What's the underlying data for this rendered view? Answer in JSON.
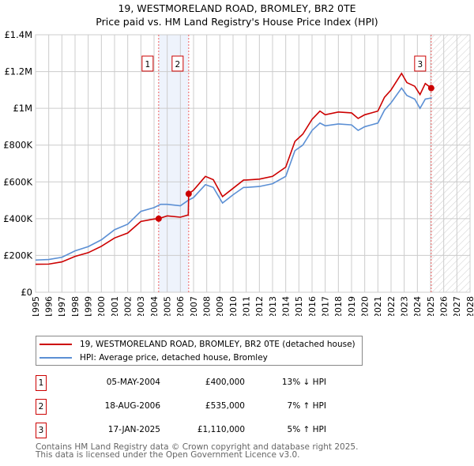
{
  "chart_data": {
    "type": "line",
    "title": "19, WESTMORELAND ROAD, BROMLEY, BR2 0TE",
    "subtitle": "Price paid vs. HM Land Registry's House Price Index (HPI)",
    "xlim": [
      1995,
      2028
    ],
    "ylim": [
      0,
      1400000
    ],
    "x_ticks": [
      "1995",
      "1996",
      "1997",
      "1998",
      "1999",
      "2000",
      "2001",
      "2002",
      "2003",
      "2004",
      "2005",
      "2006",
      "2007",
      "2008",
      "2009",
      "2010",
      "2011",
      "2012",
      "2013",
      "2014",
      "2015",
      "2016",
      "2017",
      "2018",
      "2019",
      "2020",
      "2021",
      "2022",
      "2023",
      "2024",
      "2025",
      "2026",
      "2027",
      "2028"
    ],
    "y_ticks": [
      {
        "v": 0,
        "label": "£0"
      },
      {
        "v": 200000,
        "label": "£200K"
      },
      {
        "v": 400000,
        "label": "£400K"
      },
      {
        "v": 600000,
        "label": "£600K"
      },
      {
        "v": 800000,
        "label": "£800K"
      },
      {
        "v": 1000000,
        "label": "£1M"
      },
      {
        "v": 1200000,
        "label": "£1.2M"
      },
      {
        "v": 1400000,
        "label": "£1.4M"
      }
    ],
    "grid": true,
    "series": [
      {
        "name": "19, WESTMORELAND ROAD, BROMLEY, BR2 0TE (detached house)",
        "color": "#cc0000",
        "x": [
          1995,
          1996,
          1997,
          1998,
          1999,
          2000,
          2001,
          2002,
          2003,
          2004,
          2004.35,
          2005,
          2006,
          2006.6,
          2006.63,
          2007,
          2007.9,
          2008.5,
          2009.2,
          2010,
          2010.8,
          2011,
          2012,
          2013,
          2014,
          2014.7,
          2015.3,
          2016,
          2016.6,
          2017,
          2018,
          2019,
          2019.5,
          2020,
          2020.5,
          2021,
          2021.5,
          2022,
          2022.8,
          2023.2,
          2023.8,
          2024.2,
          2024.6,
          2025.05
        ],
        "y": [
          152000,
          153000,
          165000,
          195000,
          215000,
          250000,
          295000,
          322000,
          385000,
          398000,
          400000,
          415000,
          408000,
          420000,
          535000,
          555000,
          630000,
          612000,
          520000,
          565000,
          610000,
          610000,
          615000,
          630000,
          680000,
          820000,
          860000,
          940000,
          985000,
          965000,
          980000,
          975000,
          945000,
          965000,
          975000,
          985000,
          1060000,
          1100000,
          1190000,
          1140000,
          1120000,
          1075000,
          1135000,
          1110000
        ]
      },
      {
        "name": "HPI: Average price, detached house, Bromley",
        "color": "#5b8fd4",
        "x": [
          1995,
          1996,
          1997,
          1998,
          1999,
          2000,
          2001,
          2002,
          2003,
          2004,
          2004.5,
          2005,
          2006,
          2006.6,
          2007,
          2007.9,
          2008.5,
          2009.2,
          2010,
          2010.8,
          2011,
          2012,
          2013,
          2014,
          2014.7,
          2015.3,
          2016,
          2016.6,
          2017,
          2018,
          2019,
          2019.5,
          2020,
          2020.5,
          2021,
          2021.5,
          2022,
          2022.8,
          2023.2,
          2023.8,
          2024.2,
          2024.6,
          2025.1
        ],
        "y": [
          175000,
          178000,
          190000,
          225000,
          248000,
          285000,
          340000,
          370000,
          440000,
          460000,
          478000,
          478000,
          470000,
          500000,
          515000,
          585000,
          570000,
          485000,
          530000,
          570000,
          570000,
          575000,
          590000,
          630000,
          770000,
          800000,
          880000,
          920000,
          905000,
          915000,
          910000,
          880000,
          900000,
          910000,
          920000,
          990000,
          1030000,
          1110000,
          1070000,
          1050000,
          1000000,
          1050000,
          1057000
        ]
      }
    ],
    "sales": [
      {
        "id": "1",
        "x": 2004.35,
        "y": 400000,
        "date": "05-MAY-2004",
        "price": "£400,000",
        "hpi": "13% ↓ HPI"
      },
      {
        "id": "2",
        "x": 2006.63,
        "y": 535000,
        "date": "18-AUG-2006",
        "price": "£535,000",
        "hpi": "7% ↑ HPI"
      },
      {
        "id": "3",
        "x": 2025.05,
        "y": 1110000,
        "date": "17-JAN-2025",
        "price": "£1,110,000",
        "hpi": "5% ↑ HPI"
      }
    ],
    "shaded_range": [
      2004.35,
      2006.63
    ],
    "forecast_hatch_from": 2025.05
  },
  "footer": [
    "Contains HM Land Registry data © Crown copyright and database right 2025.",
    "This data is licensed under the Open Government Licence v3.0."
  ]
}
